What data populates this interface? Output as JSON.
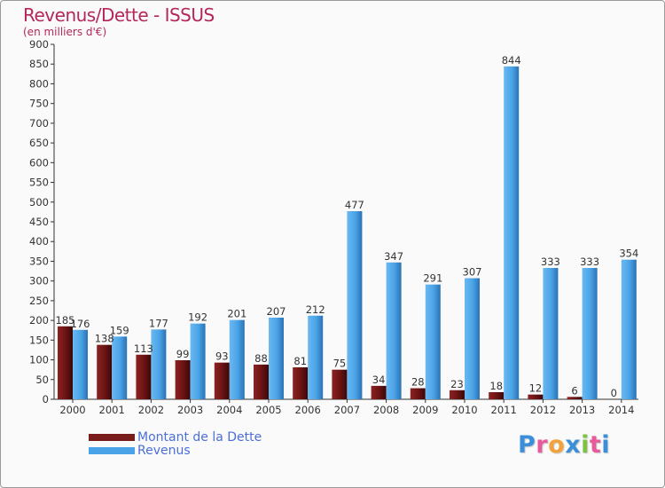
{
  "title": "Revenus/Dette - ISSUS",
  "subtitle": "(en milliers d'€)",
  "brand": {
    "text": "Proxiti",
    "colors": [
      "#3b8fd8",
      "#e85a9a",
      "#f2a23a",
      "#3b8fd8",
      "#7ec242",
      "#e85a9a",
      "#3b8fd8"
    ]
  },
  "legend": [
    {
      "label": "Montant de la Dette",
      "color": "#7a1c1c"
    },
    {
      "label": "Revenus",
      "color": "#4aa3e6"
    }
  ],
  "chart_data": {
    "type": "bar",
    "title": "Revenus/Dette - ISSUS",
    "subtitle": "(en milliers d'€)",
    "categories": [
      "2000",
      "2001",
      "2002",
      "2003",
      "2004",
      "2005",
      "2006",
      "2007",
      "2008",
      "2009",
      "2010",
      "2011",
      "2012",
      "2013",
      "2014"
    ],
    "series": [
      {
        "name": "Montant de la Dette",
        "color": "#7a1c1c",
        "values": [
          185,
          138,
          113,
          99,
          93,
          88,
          81,
          75,
          34,
          28,
          23,
          18,
          12,
          6,
          0
        ]
      },
      {
        "name": "Revenus",
        "color": "#4aa3e6",
        "values": [
          176,
          159,
          177,
          192,
          201,
          207,
          212,
          477,
          347,
          291,
          307,
          844,
          333,
          333,
          354
        ]
      }
    ],
    "ylim": [
      0,
      900
    ],
    "yticks": [
      0,
      50,
      100,
      150,
      200,
      250,
      300,
      350,
      400,
      450,
      500,
      550,
      600,
      650,
      700,
      750,
      800,
      850,
      900
    ],
    "grid": false,
    "legend_position": "bottom-left"
  }
}
